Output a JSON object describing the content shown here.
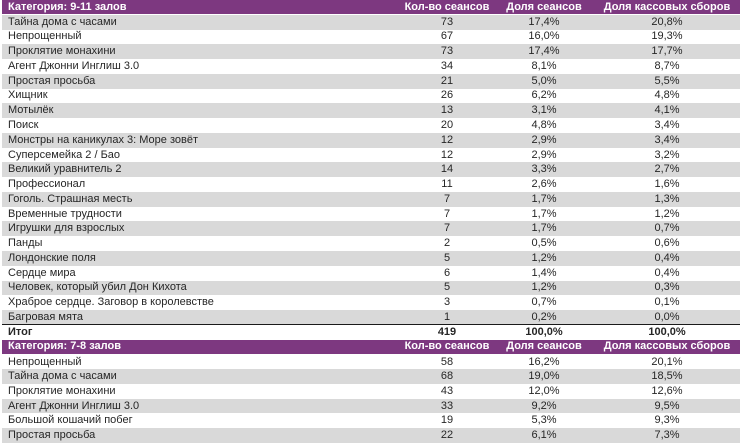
{
  "colors": {
    "header_bg": "#7d3880",
    "header_text": "#ffffff",
    "row_shaded": "#d9d9d9",
    "row_plain": "#ffffff",
    "text": "#262626",
    "total_border": "#1a1a1a"
  },
  "sections": [
    {
      "category": "Категория: 9-11 залов",
      "columns": [
        "Кол-во сеансов",
        "Доля сеансов",
        "Доля кассовых сборов"
      ],
      "rows": [
        {
          "title": "Тайна дома с часами",
          "sessions": "73",
          "sessions_share": "17,4%",
          "box_office_share": "20,8%"
        },
        {
          "title": "Непрощенный",
          "sessions": "67",
          "sessions_share": "16,0%",
          "box_office_share": "19,3%"
        },
        {
          "title": "Проклятие монахини",
          "sessions": "73",
          "sessions_share": "17,4%",
          "box_office_share": "17,7%"
        },
        {
          "title": "Агент Джонни Инглиш 3.0",
          "sessions": "34",
          "sessions_share": "8,1%",
          "box_office_share": "8,7%"
        },
        {
          "title": "Простая просьба",
          "sessions": "21",
          "sessions_share": "5,0%",
          "box_office_share": "5,5%"
        },
        {
          "title": "Хищник",
          "sessions": "26",
          "sessions_share": "6,2%",
          "box_office_share": "4,8%"
        },
        {
          "title": "Мотылёк",
          "sessions": "13",
          "sessions_share": "3,1%",
          "box_office_share": "4,1%"
        },
        {
          "title": "Поиск",
          "sessions": "20",
          "sessions_share": "4,8%",
          "box_office_share": "3,4%"
        },
        {
          "title": "Монстры на каникулах 3: Море зовёт",
          "sessions": "12",
          "sessions_share": "2,9%",
          "box_office_share": "3,4%"
        },
        {
          "title": "Суперсемейка 2 / Бао",
          "sessions": "12",
          "sessions_share": "2,9%",
          "box_office_share": "3,2%"
        },
        {
          "title": "Великий уравнитель 2",
          "sessions": "14",
          "sessions_share": "3,3%",
          "box_office_share": "2,7%"
        },
        {
          "title": "Профессионал",
          "sessions": "11",
          "sessions_share": "2,6%",
          "box_office_share": "1,6%"
        },
        {
          "title": "Гоголь. Страшная месть",
          "sessions": "7",
          "sessions_share": "1,7%",
          "box_office_share": "1,3%"
        },
        {
          "title": "Временные трудности",
          "sessions": "7",
          "sessions_share": "1,7%",
          "box_office_share": "1,2%"
        },
        {
          "title": "Игрушки для взрослых",
          "sessions": "7",
          "sessions_share": "1,7%",
          "box_office_share": "0,7%"
        },
        {
          "title": "Панды",
          "sessions": "2",
          "sessions_share": "0,5%",
          "box_office_share": "0,6%"
        },
        {
          "title": "Лондонские поля",
          "sessions": "5",
          "sessions_share": "1,2%",
          "box_office_share": "0,4%"
        },
        {
          "title": "Сердце мира",
          "sessions": "6",
          "sessions_share": "1,4%",
          "box_office_share": "0,4%"
        },
        {
          "title": "Человек, который убил Дон Кихота",
          "sessions": "5",
          "sessions_share": "1,2%",
          "box_office_share": "0,3%"
        },
        {
          "title": "Храброе сердце. Заговор в королевстве",
          "sessions": "3",
          "sessions_share": "0,7%",
          "box_office_share": "0,1%"
        },
        {
          "title": "Багровая мята",
          "sessions": "1",
          "sessions_share": "0,2%",
          "box_office_share": "0,0%"
        }
      ],
      "total": {
        "title": "Итог",
        "sessions": "419",
        "sessions_share": "100,0%",
        "box_office_share": "100,0%"
      }
    },
    {
      "category": "Категория: 7-8 залов",
      "columns": [
        "Кол-во сеансов",
        "Доля сеансов",
        "Доля кассовых сборов"
      ],
      "rows": [
        {
          "title": "Непрощенный",
          "sessions": "58",
          "sessions_share": "16,2%",
          "box_office_share": "20,1%"
        },
        {
          "title": "Тайна дома с часами",
          "sessions": "68",
          "sessions_share": "19,0%",
          "box_office_share": "18,5%"
        },
        {
          "title": "Проклятие монахини",
          "sessions": "43",
          "sessions_share": "12,0%",
          "box_office_share": "12,6%"
        },
        {
          "title": "Агент Джонни Инглиш 3.0",
          "sessions": "33",
          "sessions_share": "9,2%",
          "box_office_share": "9,5%"
        },
        {
          "title": "Большой кошачий побег",
          "sessions": "19",
          "sessions_share": "5,3%",
          "box_office_share": "9,3%"
        },
        {
          "title": "Простая просьба",
          "sessions": "22",
          "sessions_share": "6,1%",
          "box_office_share": "7,3%"
        }
      ]
    }
  ]
}
